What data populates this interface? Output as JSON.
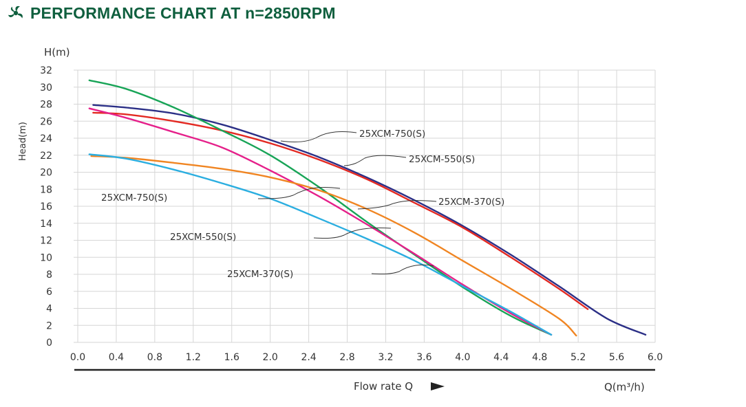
{
  "title": "PERFORMANCE CHART AT n=2850RPM",
  "logo_icon": "fan-blades-icon",
  "colors": {
    "title": "#0f5f3e",
    "grid": "#d6d6d6",
    "text": "#333333"
  },
  "chart_data": {
    "type": "line",
    "title": "PERFORMANCE CHART AT n=2850RPM",
    "xlabel": "Flow rate Q",
    "xunit": "Q(m³/h)",
    "ylabel": "Head(m)",
    "yunit": "H(m)",
    "xlim": [
      0,
      6
    ],
    "ylim": [
      0,
      32
    ],
    "x_ticks": [
      "0.0",
      "0.4",
      "0.8",
      "1.2",
      "1.6",
      "2.0",
      "2.4",
      "2.8",
      "3.2",
      "3.6",
      "4.0",
      "4.4",
      "4.8",
      "5.2",
      "5.6",
      "6.0"
    ],
    "y_ticks": [
      "0",
      "2",
      "4",
      "6",
      "8",
      "10",
      "12",
      "14",
      "16",
      "18",
      "20",
      "22",
      "24",
      "26",
      "28",
      "30",
      "32"
    ],
    "grid": true,
    "series": [
      {
        "name": "25XCM-750(S)",
        "color": "#2b2f86",
        "x": [
          0.16,
          0.5,
          1.0,
          1.5,
          2.0,
          2.5,
          3.0,
          3.5,
          4.0,
          4.5,
          5.0,
          5.5,
          5.9
        ],
        "y": [
          27.9,
          27.6,
          26.9,
          25.6,
          23.8,
          21.8,
          19.4,
          16.7,
          13.7,
          10.3,
          6.6,
          2.8,
          0.9
        ]
      },
      {
        "name": "25XCM-750(S)",
        "color": "#e32922",
        "x": [
          0.16,
          0.5,
          1.0,
          1.5,
          2.0,
          2.5,
          3.0,
          3.5,
          4.0,
          4.5,
          5.0,
          5.3
        ],
        "y": [
          27.0,
          26.8,
          26.0,
          24.9,
          23.4,
          21.5,
          19.2,
          16.4,
          13.5,
          10.0,
          6.3,
          3.9
        ]
      },
      {
        "name": "25XCM-550(S)",
        "color": "#18a457",
        "x": [
          0.12,
          0.5,
          1.0,
          1.5,
          2.0,
          2.5,
          3.0,
          3.5,
          4.0,
          4.5,
          4.92
        ],
        "y": [
          30.8,
          29.8,
          27.6,
          24.9,
          22.0,
          18.3,
          14.2,
          10.3,
          6.5,
          3.1,
          0.9
        ]
      },
      {
        "name": "25XCM-550(S)",
        "color": "#e5208a",
        "x": [
          0.12,
          0.5,
          1.0,
          1.5,
          2.0,
          2.5,
          3.0,
          3.5,
          4.0,
          4.5,
          4.92
        ],
        "y": [
          27.5,
          26.4,
          24.7,
          22.9,
          20.2,
          17.2,
          13.9,
          10.4,
          6.8,
          3.4,
          0.9
        ]
      },
      {
        "name": "25XCM-370(S)",
        "color": "#f08522",
        "x": [
          0.14,
          0.5,
          1.0,
          1.5,
          2.0,
          2.5,
          3.0,
          3.5,
          4.0,
          4.5,
          5.0,
          5.18
        ],
        "y": [
          21.9,
          21.7,
          21.1,
          20.4,
          19.4,
          17.9,
          15.7,
          12.9,
          9.6,
          6.3,
          2.8,
          0.8
        ]
      },
      {
        "name": "25XCM-370(S)",
        "color": "#2baee0",
        "x": [
          0.12,
          0.5,
          1.0,
          1.5,
          2.0,
          2.5,
          3.0,
          3.5,
          4.0,
          4.5,
          4.92
        ],
        "y": [
          22.1,
          21.6,
          20.3,
          18.7,
          16.9,
          14.6,
          12.2,
          9.6,
          6.6,
          3.6,
          0.9
        ]
      }
    ],
    "annotations": [
      {
        "text": "25XCM-750(S)",
        "target": "25XCM-750(S) upper (navy/red)"
      },
      {
        "text": "25XCM-550(S)",
        "target": "25XCM-750(S) red curve region"
      },
      {
        "text": "25XCM-370(S)",
        "target": "upper curves near 3.0 m³/h"
      },
      {
        "text": "25XCM-750(S)",
        "target": "orange curve"
      },
      {
        "text": "25XCM-550(S)",
        "target": "magenta curve"
      },
      {
        "text": "25XCM-370(S)",
        "target": "cyan curve"
      }
    ],
    "arrow_icon": "right-triangle-arrow-icon"
  }
}
